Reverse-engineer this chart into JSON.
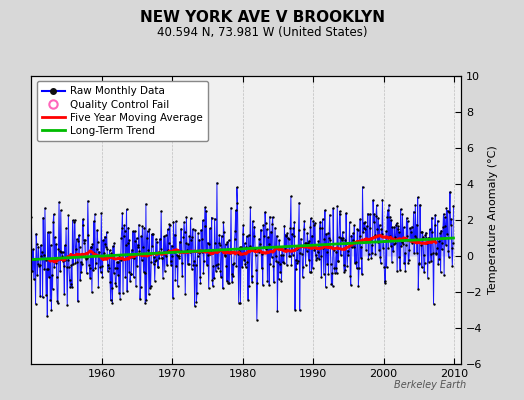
{
  "title": "NEW YORK AVE V BROOKLYN",
  "subtitle": "40.594 N, 73.981 W (United States)",
  "ylabel": "Temperature Anomaly (°C)",
  "watermark": "Berkeley Earth",
  "year_start": 1950,
  "year_end": 2010,
  "ylim": [
    -6,
    10
  ],
  "yticks": [
    -6,
    -4,
    -2,
    0,
    2,
    4,
    6,
    8,
    10
  ],
  "xticks": [
    1960,
    1970,
    1980,
    1990,
    2000,
    2010
  ],
  "xlim": [
    1950,
    2011
  ],
  "bg_color": "#d8d8d8",
  "plot_bg_color": "#f0f0f0",
  "raw_line_color": "#0000ff",
  "raw_fill_color": "#9999ff",
  "raw_dot_color": "#000000",
  "moving_avg_color": "#ff0000",
  "trend_color": "#00bb00",
  "title_fontsize": 11,
  "subtitle_fontsize": 8.5,
  "tick_fontsize": 8,
  "legend_fontsize": 7.5,
  "ylabel_fontsize": 8
}
